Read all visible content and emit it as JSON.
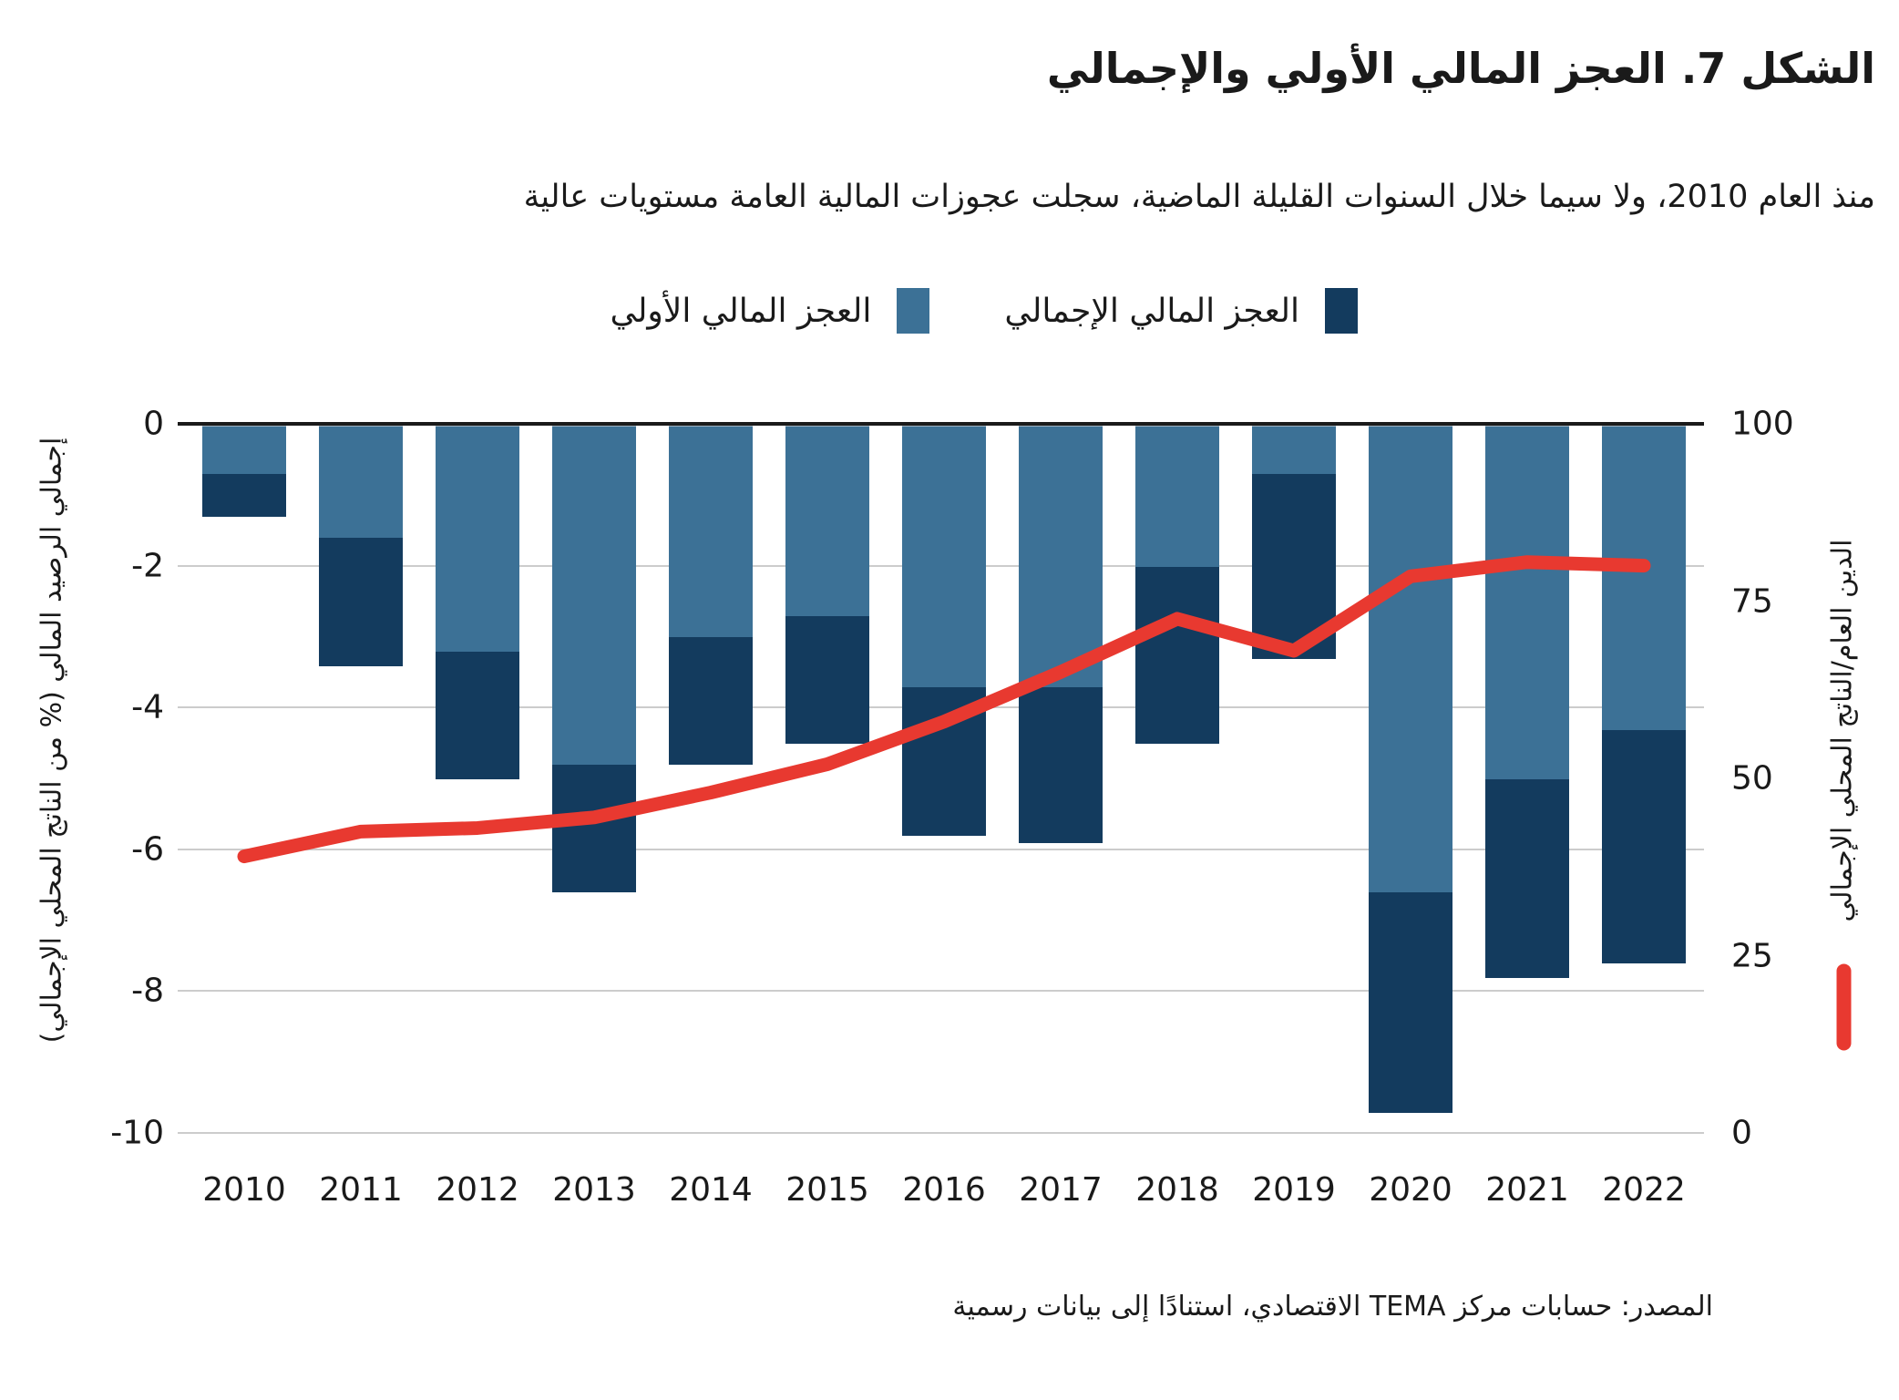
{
  "title": "الشكل 7. العجز المالي الأولي والإجمالي",
  "subtitle": "منذ العام 2010، ولا سيما خلال السنوات القليلة الماضية، سجلت عجوزات المالية العامة مستويات عالية",
  "source": "المصدر: حسابات مركز TEMA الاقتصادي، استنادًا إلى بيانات رسمية",
  "colors": {
    "primary_deficit": "#3C7196",
    "overall_deficit": "#133B5E",
    "debt_line": "#E83930",
    "gridline": "#cccccc",
    "zero_line": "#1a1a1a",
    "text": "#1a1a1a"
  },
  "legend": [
    {
      "label": "العجز المالي الإجمالي",
      "color": "#133B5E"
    },
    {
      "label": "العجز المالي الأولي",
      "color": "#3C7196"
    }
  ],
  "axes": {
    "left": {
      "title": "إجمالي الرصيد المالي (% من الناتج المحلي الإجمالي)",
      "tick_labels": [
        "0",
        "-2",
        "-4",
        "-6",
        "-8",
        "-10"
      ],
      "range": [
        0,
        -10
      ]
    },
    "right": {
      "title": "الدين العام/الناتج المحلي الإجمالي",
      "tick_labels": [
        "100",
        "75",
        "50",
        "25",
        "0"
      ],
      "range": [
        100,
        0
      ]
    }
  },
  "chart_data": {
    "type": "bar+line",
    "subtype": "stacked negative bars with secondary-axis line",
    "categories": [
      "2010",
      "2011",
      "2012",
      "2013",
      "2014",
      "2015",
      "2016",
      "2017",
      "2018",
      "2019",
      "2020",
      "2021",
      "2022"
    ],
    "series": [
      {
        "name": "العجز المالي الأولي",
        "type": "bar-segment-top",
        "axis": "left",
        "color": "#3C7196",
        "values": [
          -0.7,
          -1.6,
          -3.2,
          -4.8,
          -3.0,
          -2.7,
          -3.7,
          -3.7,
          -2.0,
          -0.7,
          -6.6,
          -5.0,
          -4.3
        ]
      },
      {
        "name": "العجز المالي الإجمالي",
        "type": "bar-stack-bottom",
        "axis": "left",
        "color": "#133B5E",
        "values": [
          -1.3,
          -3.4,
          -5.0,
          -6.6,
          -4.8,
          -4.5,
          -5.8,
          -5.9,
          -4.5,
          -3.3,
          -9.7,
          -7.8,
          -7.6
        ]
      },
      {
        "name": "الدين العام/الناتج المحلي الإجمالي",
        "type": "line",
        "axis": "right",
        "color": "#E83930",
        "values": [
          39,
          42.5,
          43,
          44.5,
          48,
          52,
          58,
          65,
          72.5,
          68,
          78.5,
          80.5,
          80
        ]
      }
    ],
    "left_axis_range": [
      0,
      -10
    ],
    "right_axis_range": [
      0,
      100
    ],
    "grid": true,
    "legend_position": "top"
  }
}
